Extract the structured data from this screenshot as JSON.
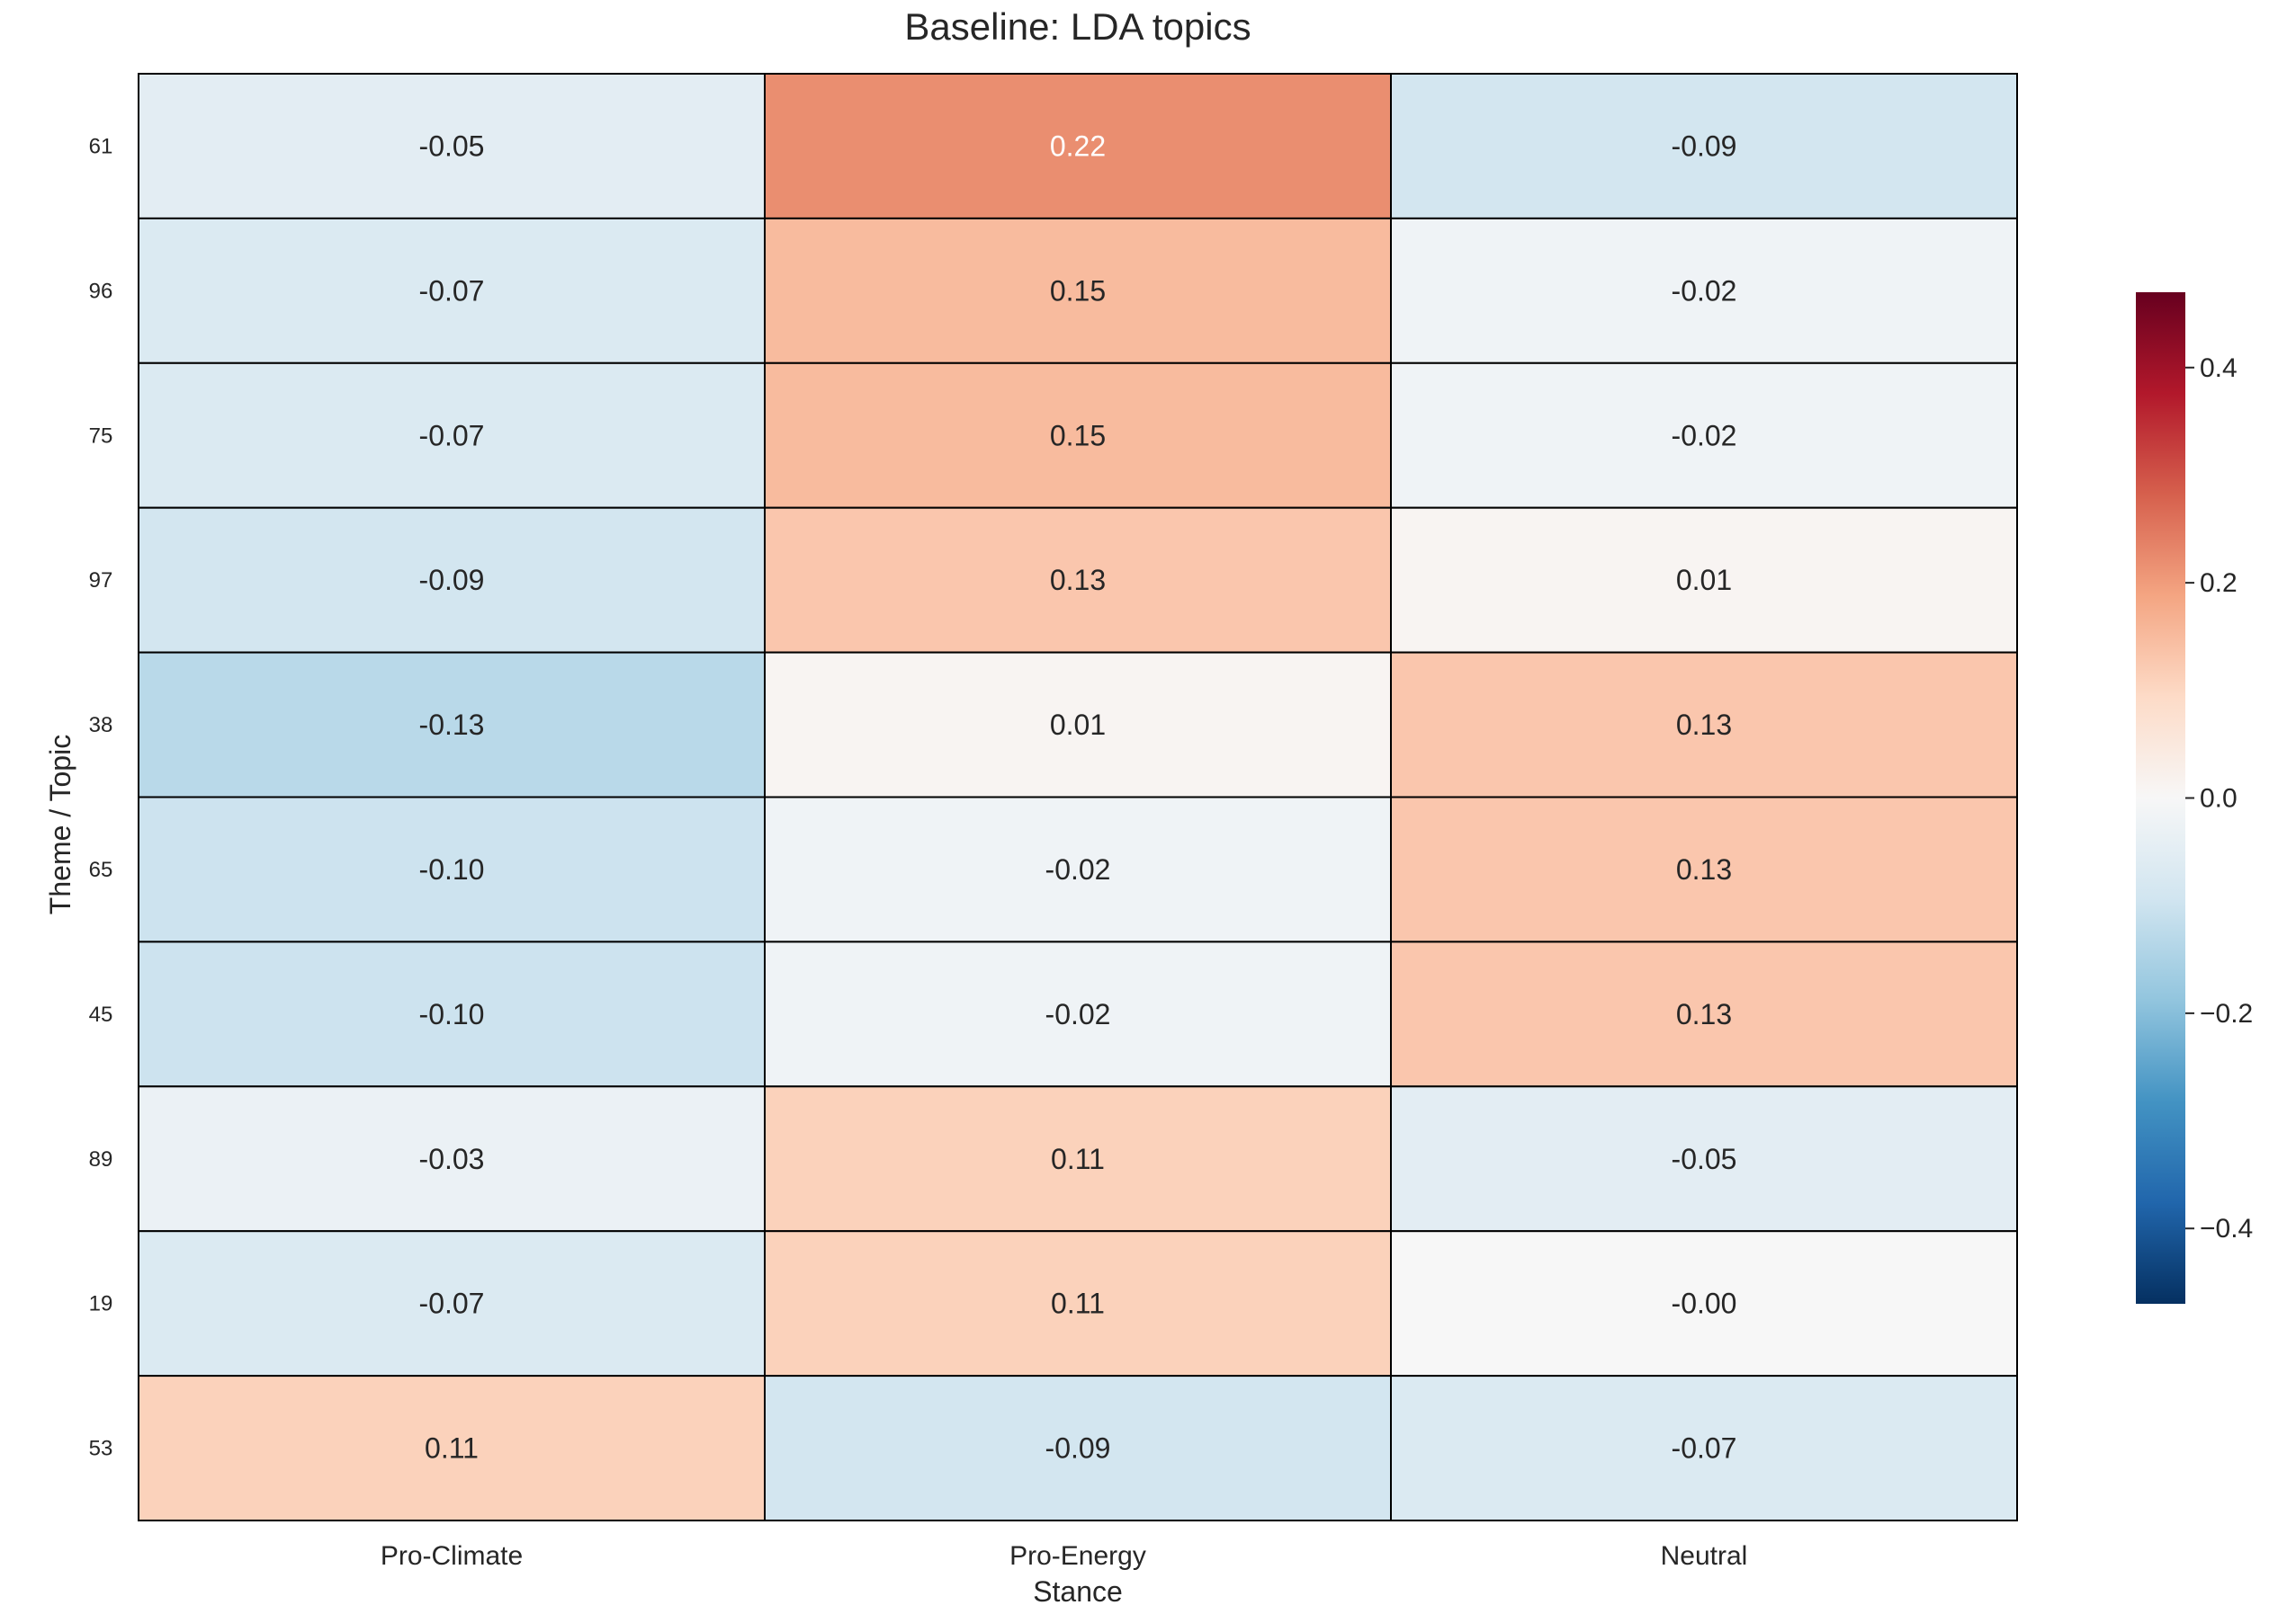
{
  "chart_data": {
    "type": "heatmap",
    "title": "Baseline: LDA topics",
    "xlabel": "Stance",
    "ylabel": "Theme / Topic",
    "x_categories": [
      "Pro-Climate",
      "Pro-Energy",
      "Neutral"
    ],
    "y_categories": [
      "61",
      "96",
      "75",
      "97",
      "38",
      "65",
      "45",
      "89",
      "19",
      "53"
    ],
    "values": [
      [
        -0.05,
        0.22,
        -0.09
      ],
      [
        -0.07,
        0.15,
        -0.02
      ],
      [
        -0.07,
        0.15,
        -0.02
      ],
      [
        -0.09,
        0.13,
        0.01
      ],
      [
        -0.13,
        0.01,
        0.13
      ],
      [
        -0.1,
        -0.02,
        0.13
      ],
      [
        -0.1,
        -0.02,
        0.13
      ],
      [
        -0.03,
        0.11,
        -0.05
      ],
      [
        -0.07,
        0.11,
        -0.0
      ],
      [
        0.11,
        -0.09,
        -0.07
      ]
    ],
    "value_labels": [
      [
        "-0.05",
        "0.22",
        "-0.09"
      ],
      [
        "-0.07",
        "0.15",
        "-0.02"
      ],
      [
        "-0.07",
        "0.15",
        "-0.02"
      ],
      [
        "-0.09",
        "0.13",
        "0.01"
      ],
      [
        "-0.13",
        "0.01",
        "0.13"
      ],
      [
        "-0.10",
        "-0.02",
        "0.13"
      ],
      [
        "-0.10",
        "-0.02",
        "0.13"
      ],
      [
        "-0.03",
        "0.11",
        "-0.05"
      ],
      [
        "-0.07",
        "0.11",
        "-0.00"
      ],
      [
        "0.11",
        "-0.09",
        "-0.07"
      ]
    ],
    "colormap": "RdBu_r",
    "vmin": -0.47,
    "vmax": 0.47,
    "colorbar_ticks": [
      0.4,
      0.2,
      0.0,
      -0.2,
      -0.4
    ],
    "colorbar_tick_labels": [
      "0.4",
      "0.2",
      "0.0",
      "−0.2",
      "−0.4"
    ]
  }
}
